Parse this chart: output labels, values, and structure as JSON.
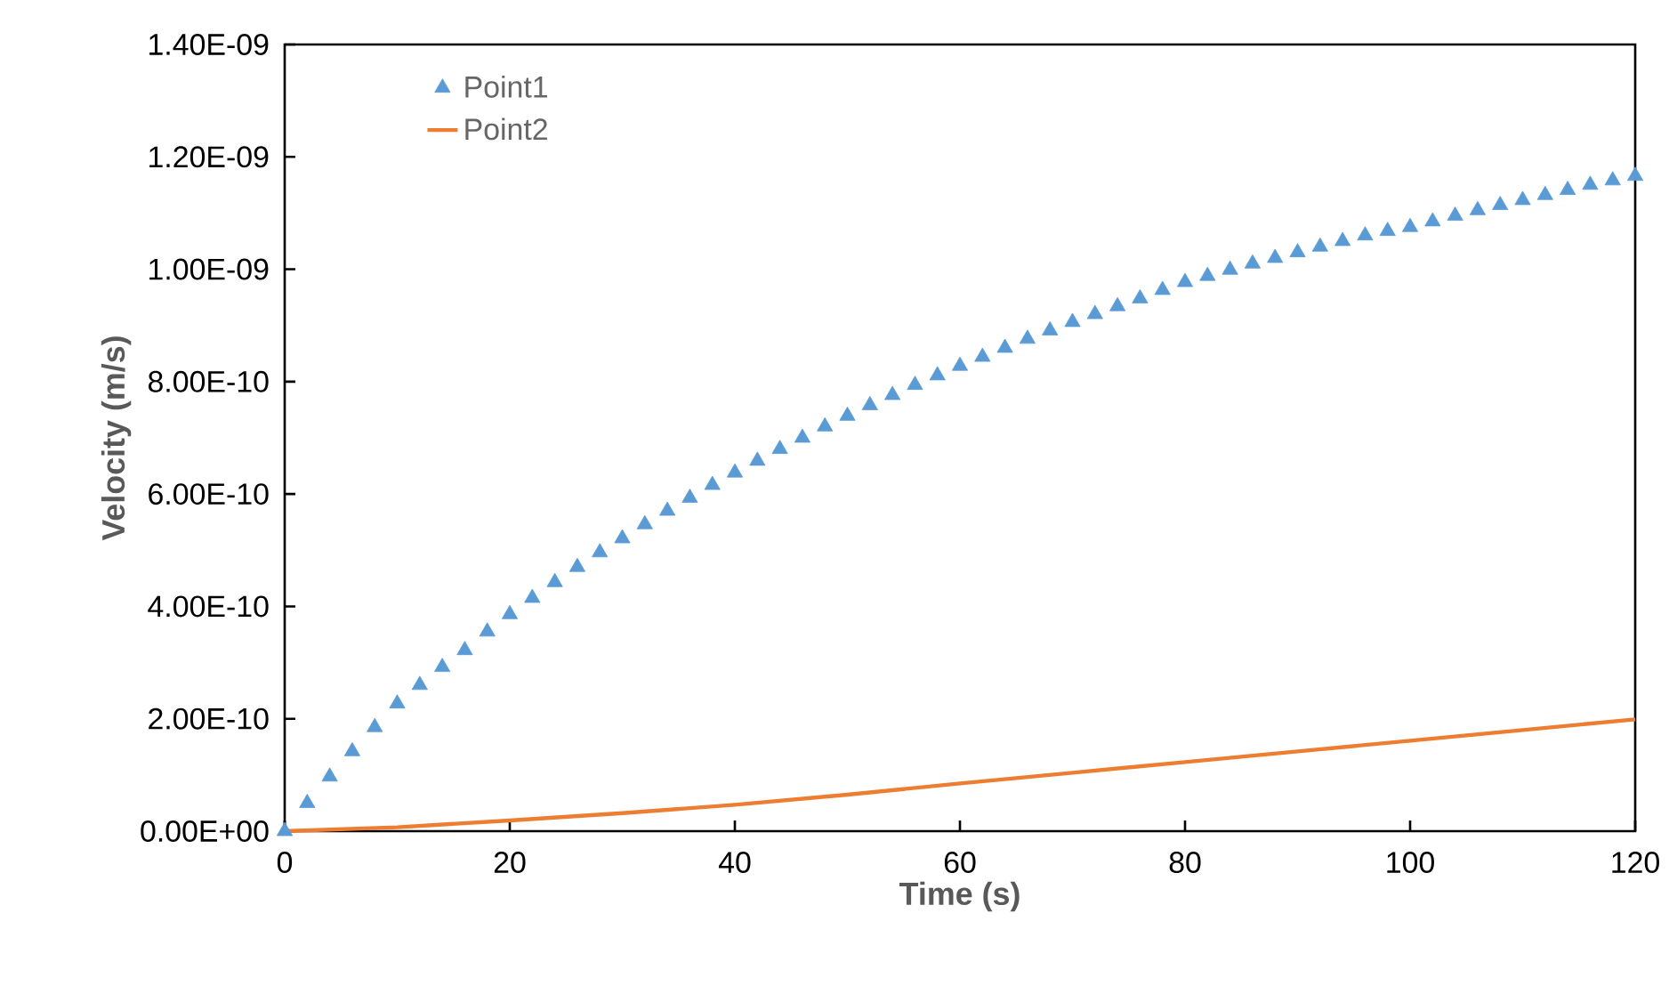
{
  "chart_data": {
    "type": "scatter",
    "xlabel": "Time (s)",
    "ylabel": "Velocity (m/s)",
    "xlim": [
      0,
      120
    ],
    "xticks": [
      0,
      20,
      40,
      60,
      80,
      100,
      120
    ],
    "ylim": [
      0,
      1.4e-09
    ],
    "yticks": [
      {
        "value": 0,
        "label": "0.00E+00"
      },
      {
        "value": 2e-10,
        "label": "2.00E-10"
      },
      {
        "value": 4e-10,
        "label": "4.00E-10"
      },
      {
        "value": 6e-10,
        "label": "6.00E-10"
      },
      {
        "value": 8e-10,
        "label": "8.00E-10"
      },
      {
        "value": 1e-09,
        "label": "1.00E-09"
      },
      {
        "value": 1.2e-09,
        "label": "1.20E-09"
      },
      {
        "value": 1.4e-09,
        "label": "1.40E-09"
      }
    ],
    "legend": "top left",
    "series": [
      {
        "name": "Point1",
        "marker": "triangle",
        "color": "#5b9bd5",
        "x": [
          0,
          2,
          4,
          6,
          8,
          10,
          12,
          14,
          16,
          18,
          20,
          22,
          24,
          26,
          28,
          30,
          32,
          34,
          36,
          38,
          40,
          42,
          44,
          46,
          48,
          50,
          52,
          54,
          56,
          58,
          60,
          62,
          64,
          66,
          68,
          70,
          72,
          74,
          76,
          78,
          80,
          82,
          84,
          86,
          88,
          90,
          92,
          94,
          96,
          98,
          100,
          102,
          104,
          106,
          108,
          110,
          112,
          114,
          116,
          118,
          120
        ],
        "values": [
          0,
          5e-11,
          9.7e-11,
          1.42e-10,
          1.85e-10,
          2.27e-10,
          2.6e-10,
          2.92e-10,
          3.22e-10,
          3.55e-10,
          3.86e-10,
          4.15e-10,
          4.43e-10,
          4.7e-10,
          4.96e-10,
          5.21e-10,
          5.46e-10,
          5.7e-10,
          5.93e-10,
          6.16e-10,
          6.38e-10,
          6.59e-10,
          6.8e-10,
          7e-10,
          7.2e-10,
          7.39e-10,
          7.58e-10,
          7.76e-10,
          7.94e-10,
          8.11e-10,
          8.28e-10,
          8.44e-10,
          8.6e-10,
          8.76e-10,
          8.91e-10,
          9.06e-10,
          9.2e-10,
          9.34e-10,
          9.48e-10,
          9.63e-10,
          9.77e-10,
          9.88e-10,
          9.99e-10,
          1.01e-09,
          1.02e-09,
          1.03e-09,
          1.04e-09,
          1.05e-09,
          1.06e-09,
          1.068e-09,
          1.075e-09,
          1.085e-09,
          1.095e-09,
          1.105e-09,
          1.114e-09,
          1.123e-09,
          1.132e-09,
          1.141e-09,
          1.15e-09,
          1.158e-09,
          1.166e-09
        ]
      },
      {
        "name": "Point2",
        "type": "line",
        "line_style": "solid",
        "color": "#ed7d31",
        "x": [
          0,
          10,
          20,
          30,
          40,
          50,
          60,
          70,
          80,
          90,
          100,
          110,
          120
        ],
        "values": [
          0,
          7e-12,
          1.9e-11,
          3.2e-11,
          4.7e-11,
          6.5e-11,
          8.5e-11,
          1.04e-10,
          1.23e-10,
          1.42e-10,
          1.61e-10,
          1.8e-10,
          1.99e-10
        ]
      }
    ]
  }
}
